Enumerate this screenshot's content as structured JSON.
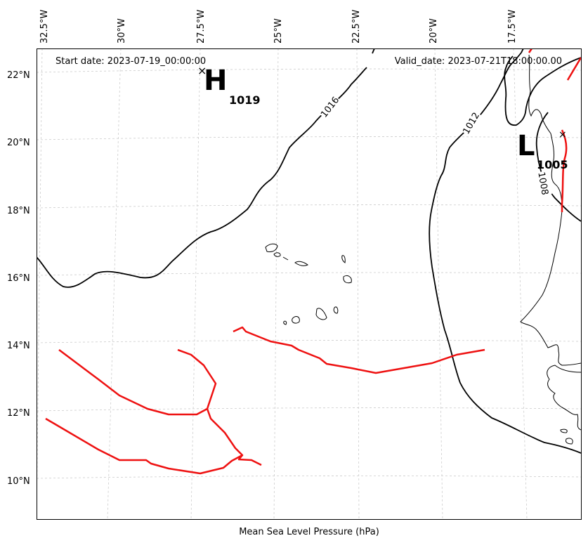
{
  "header": {
    "start_date": "Start date: 2023-07-19_00:00:00",
    "valid_date": "Valid_date: 2023-07-21T18:00:00.00"
  },
  "axis_title": "Mean Sea Level Pressure (hPa)",
  "lon_ticks": [
    "32.5°W",
    "30°W",
    "27.5°W",
    "25°W",
    "22.5°W",
    "20°W",
    "17.5°W"
  ],
  "lat_ticks": [
    "22°N",
    "20°N",
    "18°N",
    "16°N",
    "14°N",
    "12°N",
    "10°N"
  ],
  "pressure_systems": {
    "high": {
      "symbol": "H",
      "value": "1019",
      "marker": "×"
    },
    "low": {
      "symbol": "L",
      "value": "1005",
      "marker": "×"
    }
  },
  "contour_labels": [
    "1016",
    "1012",
    "1008"
  ],
  "colors": {
    "isobar": "#000000",
    "front": "#ee1111",
    "coastline": "#000000",
    "gridline": "#cccccc"
  }
}
